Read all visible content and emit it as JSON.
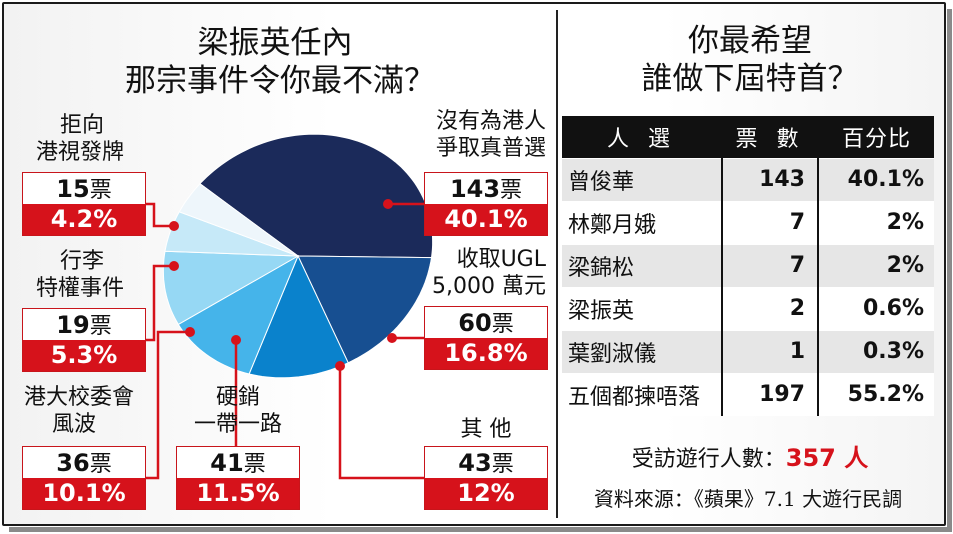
{
  "left_title": {
    "line1": "梁振英任內",
    "line2": "那宗事件令你最不滿？"
  },
  "right_title": {
    "line1": "你最希望",
    "line2": "誰做下屆特首？"
  },
  "chart_data": [
    {
      "type": "pie",
      "title": "梁振英任內那宗事件令你最不滿？",
      "vote_unit": "票",
      "slices": [
        {
          "label_lines": [
            "沒有為港人",
            "爭取真普選"
          ],
          "votes": 143,
          "percent": "40.1%",
          "value": 40.1,
          "color": "#1b2a5a"
        },
        {
          "label_lines": [
            "收取UGL",
            "5,000 萬元"
          ],
          "votes": 60,
          "percent": "16.8%",
          "value": 16.8,
          "color": "#174f91"
        },
        {
          "label_lines": [
            "其 他"
          ],
          "votes": 43,
          "percent": "12%",
          "value": 12.0,
          "color": "#0a82cc"
        },
        {
          "label_lines": [
            "硬銷",
            "一帶一路"
          ],
          "votes": 41,
          "percent": "11.5%",
          "value": 11.5,
          "color": "#45b4ea"
        },
        {
          "label_lines": [
            "港大校委會",
            "風波"
          ],
          "votes": 36,
          "percent": "10.1%",
          "value": 10.1,
          "color": "#96d8f4"
        },
        {
          "label_lines": [
            "行李",
            "特權事件"
          ],
          "votes": 19,
          "percent": "5.3%",
          "value": 5.3,
          "color": "#c6e9f8"
        },
        {
          "label_lines": [
            "拒向",
            "港視發牌"
          ],
          "votes": 15,
          "percent": "4.2%",
          "value": 4.2,
          "color": "#eef6fb"
        }
      ]
    },
    {
      "type": "table",
      "title": "你最希望誰做下屆特首？",
      "columns": [
        "人 選",
        "票 數",
        "百分比"
      ],
      "rows": [
        {
          "name": "曾俊華",
          "votes": 143,
          "percent": "40.1%"
        },
        {
          "name": "林鄭月娥",
          "votes": 7,
          "percent": "2%"
        },
        {
          "name": "梁錦松",
          "votes": 7,
          "percent": "2%"
        },
        {
          "name": "梁振英",
          "votes": 2,
          "percent": "0.6%"
        },
        {
          "name": "葉劉淑儀",
          "votes": 1,
          "percent": "0.3%"
        },
        {
          "name": "五個都揀唔落",
          "votes": 197,
          "percent": "55.2%"
        }
      ]
    }
  ],
  "respondents": {
    "label": "受訪遊行人數：",
    "value": "357 人"
  },
  "source": "資料來源：《蘋果》7.1 大遊行民調",
  "colors": {
    "accent_red": "#d6121b",
    "leader_line": "#d6121b",
    "table_header": "#111111"
  }
}
